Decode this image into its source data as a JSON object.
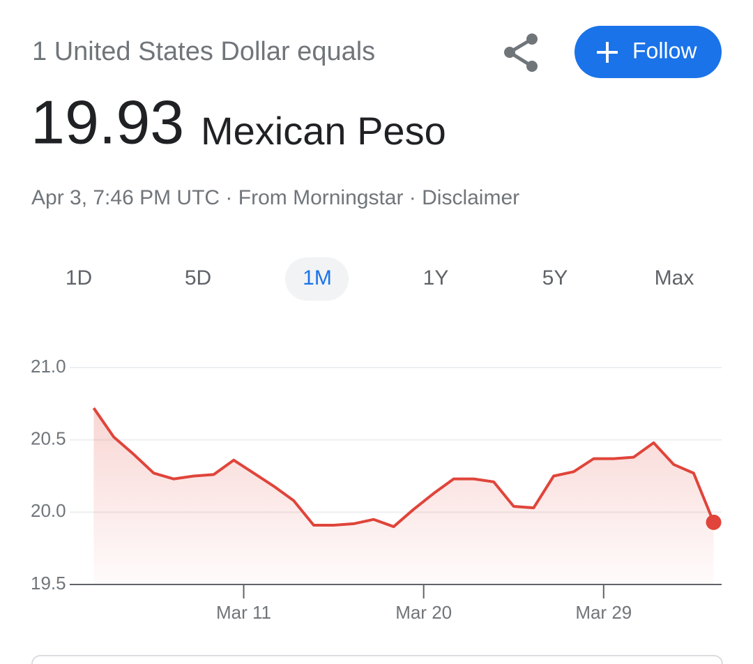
{
  "header": {
    "title": "1 United States Dollar equals",
    "rate": "19.93",
    "currency": "Mexican Peso",
    "meta": "Apr 3, 7:46 PM UTC · From Morningstar · Disclaimer",
    "follow": "Follow"
  },
  "tabs": [
    "1D",
    "5D",
    "1M",
    "1Y",
    "5Y",
    "Max"
  ],
  "chart_data": {
    "type": "line",
    "color": "#e0443a",
    "grid": true,
    "x": [
      3.5,
      4.5,
      5.5,
      6.5,
      7.5,
      8.5,
      9.5,
      10.5,
      11.5,
      12.5,
      13.5,
      14.5,
      15.5,
      16.5,
      17.5,
      18.5,
      19.5,
      20.5,
      21.5,
      22.5,
      23.5,
      24.5,
      25.5,
      26.5,
      27.5,
      28.5,
      29.5,
      30.5,
      31.5,
      32.5,
      33.5,
      34.5
    ],
    "values": [
      20.72,
      20.52,
      20.4,
      20.27,
      20.23,
      20.25,
      20.26,
      20.36,
      20.27,
      20.18,
      20.08,
      19.91,
      19.91,
      19.92,
      19.95,
      19.9,
      20.02,
      20.13,
      20.23,
      20.23,
      20.21,
      20.04,
      20.03,
      20.25,
      20.28,
      20.37,
      20.37,
      20.38,
      20.48,
      20.33,
      20.27,
      19.93
    ],
    "xlim": [
      2.3,
      34.9
    ],
    "ylim": [
      19.5,
      21.0
    ],
    "xticks": [
      {
        "value": 11,
        "label": "Mar 11"
      },
      {
        "value": 20,
        "label": "Mar 20"
      },
      {
        "value": 29,
        "label": "Mar 29"
      }
    ],
    "yticks": [
      19.5,
      {
        "value": 20,
        "label": "20.0"
      },
      20.5,
      {
        "value": 21,
        "label": "21.0"
      }
    ]
  }
}
